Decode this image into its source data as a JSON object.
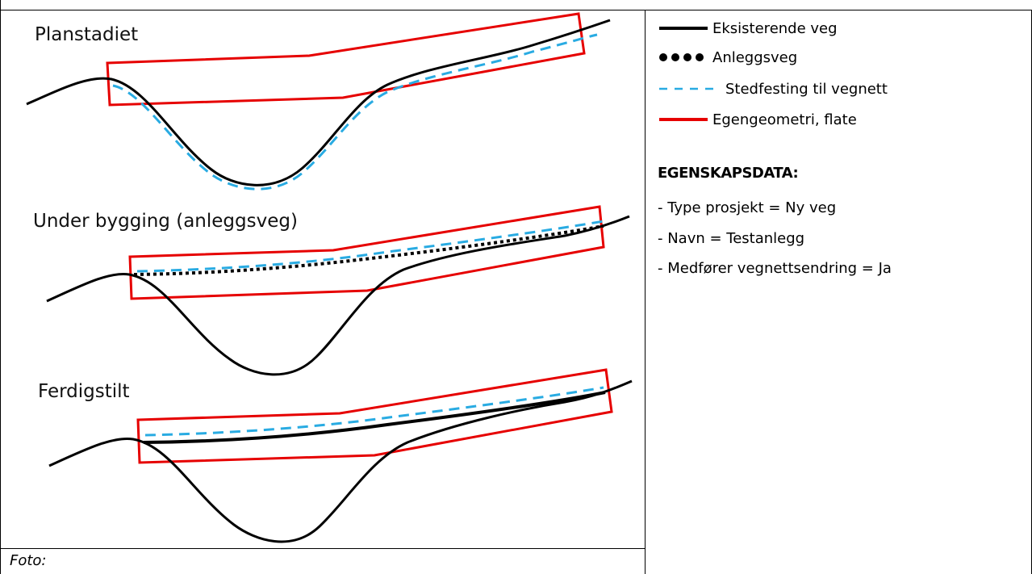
{
  "stages": {
    "planning": {
      "title": "Planstadiet"
    },
    "construction": {
      "title": "Under bygging (anleggsveg)"
    },
    "finished": {
      "title": "Ferdigstilt"
    }
  },
  "legend": {
    "items": [
      {
        "label": "Eksisterende veg",
        "style": "solid-black",
        "color": "#000000"
      },
      {
        "label": "Anleggsveg",
        "style": "dotted-black",
        "color": "#000000"
      },
      {
        "label": "Stedfesting til vegnett",
        "style": "dashed-blue",
        "color": "#29abe2"
      },
      {
        "label": "Egengeometri, flate",
        "style": "solid-red",
        "color": "#e60000"
      }
    ]
  },
  "properties": {
    "heading": "EGENSKAPSDATA:",
    "items": [
      "- Type prosjekt = Ny veg",
      "- Navn = Testanlegg",
      "- Medfører vegnettsendring = Ja"
    ]
  },
  "caption": "Foto:",
  "colors": {
    "road": "#000000",
    "network": "#29abe2",
    "area": "#e60000"
  }
}
